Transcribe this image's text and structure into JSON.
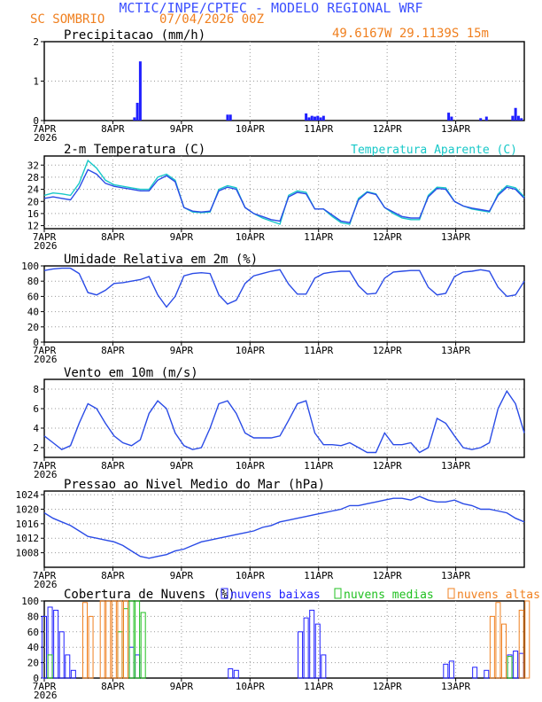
{
  "header": {
    "title": "MCTIC/INPE/CPTEC - MODELO REGIONAL WRF",
    "location": "SC SOMBRIO",
    "run_date": "07/04/2026 00Z",
    "coords": "49.6167W 29.1139S 15m"
  },
  "colors": {
    "title": "#3c50ff",
    "orange": "#f08020",
    "bar": "#2020ff",
    "temp": "#2a4be6",
    "apparent": "#18c8c8",
    "green": "#20c020"
  },
  "time_axis": {
    "start": "2026-04-07T00:00",
    "end": "2026-04-13T21:00",
    "day_labels": [
      "7APR",
      "8APR",
      "9APR",
      "10APR",
      "11APR",
      "12APR",
      "13APR"
    ],
    "year": "2026"
  },
  "chart_data": [
    {
      "type": "bar",
      "title": "Precipitacao (mm/h)",
      "ylim": [
        0,
        2
      ],
      "yticks": [
        "0",
        "1",
        "2"
      ],
      "x": [
        "2026-04-08T07",
        "2026-04-08T08",
        "2026-04-08T09",
        "2026-04-09T15",
        "2026-04-09T16",
        "2026-04-10T18",
        "2026-04-10T19",
        "2026-04-10T20",
        "2026-04-10T21",
        "2026-04-10T22",
        "2026-04-10T23",
        "2026-04-11T00",
        "2026-04-12T19",
        "2026-04-12T20",
        "2026-04-13T06",
        "2026-04-13T08",
        "2026-04-13T17",
        "2026-04-13T18",
        "2026-04-13T19",
        "2026-04-13T20"
      ],
      "values": [
        0.08,
        0.45,
        1.5,
        0.15,
        0.15,
        0.18,
        0.08,
        0.12,
        0.1,
        0.12,
        0.08,
        0.12,
        0.2,
        0.1,
        0.06,
        0.1,
        0.12,
        0.32,
        0.12,
        0.06
      ]
    },
    {
      "type": "line",
      "title": "2-m Temperatura (C)",
      "ylim": [
        11,
        35
      ],
      "yticks": [
        "12",
        "16",
        "20",
        "24",
        "28",
        "32"
      ],
      "series": [
        {
          "name": "Temperatura Aparente (C)",
          "x": [
            "2026-04-07T00",
            "2026-04-07T03",
            "2026-04-07T06",
            "2026-04-07T09",
            "2026-04-07T12",
            "2026-04-07T15",
            "2026-04-07T18",
            "2026-04-07T21",
            "2026-04-08T00",
            "2026-04-08T03",
            "2026-04-08T06",
            "2026-04-08T09",
            "2026-04-08T12",
            "2026-04-08T15",
            "2026-04-08T18",
            "2026-04-08T21",
            "2026-04-09T00",
            "2026-04-09T03",
            "2026-04-09T06",
            "2026-04-09T09",
            "2026-04-09T12",
            "2026-04-09T15",
            "2026-04-09T18",
            "2026-04-09T21",
            "2026-04-10T00",
            "2026-04-10T03",
            "2026-04-10T06",
            "2026-04-10T09",
            "2026-04-10T12",
            "2026-04-10T15",
            "2026-04-10T18",
            "2026-04-10T21",
            "2026-04-11T00",
            "2026-04-11T03",
            "2026-04-11T06",
            "2026-04-11T09",
            "2026-04-11T12",
            "2026-04-11T15",
            "2026-04-11T18",
            "2026-04-11T21",
            "2026-04-12T00",
            "2026-04-12T03",
            "2026-04-12T06",
            "2026-04-12T09",
            "2026-04-12T12",
            "2026-04-12T15",
            "2026-04-12T18",
            "2026-04-12T21",
            "2026-04-13T00",
            "2026-04-13T03",
            "2026-04-13T06",
            "2026-04-13T09",
            "2026-04-13T12",
            "2026-04-13T15",
            "2026-04-13T18",
            "2026-04-13T21"
          ],
          "values": [
            22,
            22.8,
            22.5,
            22,
            26,
            33.5,
            31,
            27,
            25.5,
            25,
            24.5,
            24,
            24,
            28,
            29,
            27,
            18,
            16.5,
            16.3,
            16.5,
            24,
            25.2,
            24.5,
            18,
            16,
            14.5,
            13.5,
            12.5,
            22,
            23.5,
            23,
            17.5,
            17.5,
            15,
            13,
            12.5,
            21,
            23.2,
            22.5,
            18,
            16,
            14.5,
            14,
            14,
            22,
            24.7,
            24.5,
            20,
            18.5,
            17.5,
            17,
            16.5,
            22.5,
            25.2,
            24.5,
            21.5
          ]
        },
        {
          "name": "",
          "x": [
            "2026-04-07T00",
            "2026-04-07T03",
            "2026-04-07T06",
            "2026-04-07T09",
            "2026-04-07T12",
            "2026-04-07T15",
            "2026-04-07T18",
            "2026-04-07T21",
            "2026-04-08T00",
            "2026-04-08T03",
            "2026-04-08T06",
            "2026-04-08T09",
            "2026-04-08T12",
            "2026-04-08T15",
            "2026-04-08T18",
            "2026-04-08T21",
            "2026-04-09T00",
            "2026-04-09T03",
            "2026-04-09T06",
            "2026-04-09T09",
            "2026-04-09T12",
            "2026-04-09T15",
            "2026-04-09T18",
            "2026-04-09T21",
            "2026-04-10T00",
            "2026-04-10T03",
            "2026-04-10T06",
            "2026-04-10T09",
            "2026-04-10T12",
            "2026-04-10T15",
            "2026-04-10T18",
            "2026-04-10T21",
            "2026-04-11T00",
            "2026-04-11T03",
            "2026-04-11T06",
            "2026-04-11T09",
            "2026-04-11T12",
            "2026-04-11T15",
            "2026-04-11T18",
            "2026-04-11T21",
            "2026-04-12T00",
            "2026-04-12T03",
            "2026-04-12T06",
            "2026-04-12T09",
            "2026-04-12T12",
            "2026-04-12T15",
            "2026-04-12T18",
            "2026-04-12T21",
            "2026-04-13T00",
            "2026-04-13T03",
            "2026-04-13T06",
            "2026-04-13T09",
            "2026-04-13T12",
            "2026-04-13T15",
            "2026-04-13T18",
            "2026-04-13T21"
          ],
          "values": [
            21,
            21.5,
            21,
            20.5,
            24.5,
            30.5,
            29,
            26,
            25,
            24.5,
            24,
            23.5,
            23.5,
            27,
            28.5,
            26.5,
            18,
            16.8,
            16.5,
            16.8,
            23.5,
            24.7,
            24,
            18,
            16,
            15,
            14,
            13.5,
            21.5,
            23,
            22.5,
            17.5,
            17.5,
            15.5,
            13.5,
            13,
            20.5,
            23,
            22.3,
            18,
            16.5,
            15,
            14.5,
            14.5,
            21.5,
            24.3,
            24,
            20,
            18.5,
            17.8,
            17.3,
            16.8,
            22,
            24.7,
            24,
            21
          ]
        }
      ]
    },
    {
      "type": "line",
      "title": "Umidade Relativa em 2m (%)",
      "ylim": [
        0,
        100
      ],
      "yticks": [
        "0",
        "20",
        "40",
        "60",
        "80",
        "100"
      ],
      "x": [
        "2026-04-07T00",
        "2026-04-07T03",
        "2026-04-07T06",
        "2026-04-07T09",
        "2026-04-07T12",
        "2026-04-07T15",
        "2026-04-07T18",
        "2026-04-07T21",
        "2026-04-08T00",
        "2026-04-08T03",
        "2026-04-08T06",
        "2026-04-08T09",
        "2026-04-08T12",
        "2026-04-08T15",
        "2026-04-08T18",
        "2026-04-08T21",
        "2026-04-09T00",
        "2026-04-09T03",
        "2026-04-09T06",
        "2026-04-09T09",
        "2026-04-09T12",
        "2026-04-09T15",
        "2026-04-09T18",
        "2026-04-09T21",
        "2026-04-10T00",
        "2026-04-10T03",
        "2026-04-10T06",
        "2026-04-10T09",
        "2026-04-10T12",
        "2026-04-10T15",
        "2026-04-10T18",
        "2026-04-10T21",
        "2026-04-11T00",
        "2026-04-11T03",
        "2026-04-11T06",
        "2026-04-11T09",
        "2026-04-11T12",
        "2026-04-11T15",
        "2026-04-11T18",
        "2026-04-11T21",
        "2026-04-12T00",
        "2026-04-12T03",
        "2026-04-12T06",
        "2026-04-12T09",
        "2026-04-12T12",
        "2026-04-12T15",
        "2026-04-12T18",
        "2026-04-12T21",
        "2026-04-13T00",
        "2026-04-13T03",
        "2026-04-13T06",
        "2026-04-13T09",
        "2026-04-13T12",
        "2026-04-13T15",
        "2026-04-13T18",
        "2026-04-13T21"
      ],
      "values": [
        94,
        96,
        97,
        97,
        90,
        65,
        62,
        68,
        77,
        78,
        80,
        82,
        86,
        62,
        46,
        60,
        87,
        90,
        91,
        90,
        62,
        50,
        55,
        77,
        87,
        90,
        93,
        95,
        76,
        63,
        63,
        84,
        90,
        92,
        93,
        93,
        74,
        63,
        64,
        84,
        92,
        93,
        94,
        94,
        72,
        62,
        64,
        86,
        92,
        93,
        95,
        93,
        72,
        60,
        62,
        80
      ]
    },
    {
      "type": "line",
      "title": "Vento em 10m (m/s)",
      "ylim": [
        1,
        9
      ],
      "yticks": [
        "2",
        "4",
        "6",
        "8"
      ],
      "x": [
        "2026-04-07T00",
        "2026-04-07T03",
        "2026-04-07T06",
        "2026-04-07T09",
        "2026-04-07T12",
        "2026-04-07T15",
        "2026-04-07T18",
        "2026-04-07T21",
        "2026-04-08T00",
        "2026-04-08T03",
        "2026-04-08T06",
        "2026-04-08T09",
        "2026-04-08T12",
        "2026-04-08T15",
        "2026-04-08T18",
        "2026-04-08T21",
        "2026-04-09T00",
        "2026-04-09T03",
        "2026-04-09T06",
        "2026-04-09T09",
        "2026-04-09T12",
        "2026-04-09T15",
        "2026-04-09T18",
        "2026-04-09T21",
        "2026-04-10T00",
        "2026-04-10T03",
        "2026-04-10T06",
        "2026-04-10T09",
        "2026-04-10T12",
        "2026-04-10T15",
        "2026-04-10T18",
        "2026-04-10T21",
        "2026-04-11T00",
        "2026-04-11T03",
        "2026-04-11T06",
        "2026-04-11T09",
        "2026-04-11T12",
        "2026-04-11T15",
        "2026-04-11T18",
        "2026-04-11T21",
        "2026-04-12T00",
        "2026-04-12T03",
        "2026-04-12T06",
        "2026-04-12T09",
        "2026-04-12T12",
        "2026-04-12T15",
        "2026-04-12T18",
        "2026-04-12T21",
        "2026-04-13T00",
        "2026-04-13T03",
        "2026-04-13T06",
        "2026-04-13T09",
        "2026-04-13T12",
        "2026-04-13T15",
        "2026-04-13T18",
        "2026-04-13T21"
      ],
      "values": [
        3.2,
        2.5,
        1.8,
        2.2,
        4.5,
        6.5,
        6,
        4.5,
        3.2,
        2.5,
        2.2,
        2.8,
        5.5,
        6.8,
        6,
        3.5,
        2.2,
        1.8,
        2,
        4,
        6.5,
        6.8,
        5.5,
        3.5,
        3,
        3,
        3,
        3.2,
        4.8,
        6.5,
        6.8,
        3.5,
        2.3,
        2.3,
        2.2,
        2.5,
        2,
        1.5,
        1.5,
        3.5,
        2.3,
        2.3,
        2.5,
        1.5,
        2,
        5,
        4.5,
        3.2,
        2,
        1.8,
        2,
        2.5,
        6,
        7.8,
        6.5,
        3.5
      ]
    },
    {
      "type": "line",
      "title": "Pressao ao Nivel Medio do Mar (hPa)",
      "ylim": [
        1004,
        1025
      ],
      "yticks": [
        "1008",
        "1012",
        "1016",
        "1020",
        "1024"
      ],
      "x": [
        "2026-04-07T00",
        "2026-04-07T03",
        "2026-04-07T06",
        "2026-04-07T09",
        "2026-04-07T12",
        "2026-04-07T15",
        "2026-04-07T18",
        "2026-04-07T21",
        "2026-04-08T00",
        "2026-04-08T03",
        "2026-04-08T06",
        "2026-04-08T09",
        "2026-04-08T12",
        "2026-04-08T15",
        "2026-04-08T18",
        "2026-04-08T21",
        "2026-04-09T00",
        "2026-04-09T03",
        "2026-04-09T06",
        "2026-04-09T09",
        "2026-04-09T12",
        "2026-04-09T15",
        "2026-04-09T18",
        "2026-04-09T21",
        "2026-04-10T00",
        "2026-04-10T03",
        "2026-04-10T06",
        "2026-04-10T09",
        "2026-04-10T12",
        "2026-04-10T15",
        "2026-04-10T18",
        "2026-04-10T21",
        "2026-04-11T00",
        "2026-04-11T03",
        "2026-04-11T06",
        "2026-04-11T09",
        "2026-04-11T12",
        "2026-04-11T15",
        "2026-04-11T18",
        "2026-04-11T21",
        "2026-04-12T00",
        "2026-04-12T03",
        "2026-04-12T06",
        "2026-04-12T09",
        "2026-04-12T12",
        "2026-04-12T15",
        "2026-04-12T18",
        "2026-04-12T21",
        "2026-04-13T00",
        "2026-04-13T03",
        "2026-04-13T06",
        "2026-04-13T09",
        "2026-04-13T12",
        "2026-04-13T15",
        "2026-04-13T18",
        "2026-04-13T21"
      ],
      "values": [
        1019,
        1017.5,
        1016.5,
        1015.5,
        1014,
        1012.5,
        1012,
        1011.5,
        1011,
        1010,
        1008.5,
        1007,
        1006.5,
        1007,
        1007.5,
        1008.5,
        1009,
        1010,
        1011,
        1011.5,
        1012,
        1012.5,
        1013,
        1013.5,
        1014,
        1015,
        1015.5,
        1016.5,
        1017,
        1017.5,
        1018,
        1018.5,
        1019,
        1019.5,
        1020,
        1021,
        1021,
        1021.5,
        1022,
        1022.5,
        1023,
        1023,
        1022.5,
        1023.5,
        1022.5,
        1022,
        1022,
        1022.5,
        1021.5,
        1021,
        1020,
        1020,
        1019.5,
        1019,
        1017.5,
        1016.5
      ]
    },
    {
      "type": "bar",
      "title": "Cobertura de Nuvens (%)",
      "ylim": [
        0,
        100
      ],
      "yticks": [
        "0",
        "20",
        "40",
        "60",
        "80",
        "100"
      ],
      "series": [
        {
          "name": "nuvens baixas",
          "x": [
            "2026-04-07T00",
            "2026-04-07T02",
            "2026-04-07T04",
            "2026-04-07T06",
            "2026-04-07T08",
            "2026-04-07T10",
            "2026-04-08T06",
            "2026-04-08T08",
            "2026-04-09T16",
            "2026-04-09T18",
            "2026-04-10T16",
            "2026-04-10T18",
            "2026-04-10T20",
            "2026-04-10T22",
            "2026-04-11T00",
            "2026-04-12T18",
            "2026-04-12T20",
            "2026-04-13T04",
            "2026-04-13T08",
            "2026-04-13T16",
            "2026-04-13T18",
            "2026-04-13T20"
          ],
          "values": [
            80,
            92,
            88,
            60,
            30,
            10,
            40,
            30,
            12,
            10,
            60,
            78,
            88,
            70,
            30,
            18,
            22,
            14,
            10,
            30,
            35,
            32
          ]
        },
        {
          "name": "nuvens medias",
          "x": [
            "2026-04-07T02",
            "2026-04-08T02",
            "2026-04-08T04",
            "2026-04-08T06",
            "2026-04-08T08",
            "2026-04-08T10",
            "2026-04-13T16"
          ],
          "values": [
            30,
            60,
            90,
            100,
            100,
            85,
            28
          ]
        },
        {
          "name": "nuvens altas",
          "x": [
            "2026-04-07T14",
            "2026-04-07T16",
            "2026-04-07T20",
            "2026-04-07T22",
            "2026-04-08T00",
            "2026-04-08T02",
            "2026-04-08T04",
            "2026-04-13T10",
            "2026-04-13T12",
            "2026-04-13T14",
            "2026-04-13T20",
            "2026-04-13T22"
          ],
          "values": [
            98,
            80,
            100,
            100,
            100,
            100,
            100,
            80,
            98,
            70,
            88,
            100
          ]
        }
      ]
    }
  ]
}
